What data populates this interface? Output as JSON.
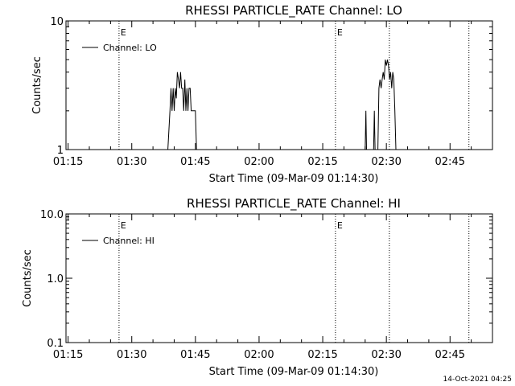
{
  "chart_data": [
    {
      "type": "line",
      "title": "RHESSI PARTICLE_RATE Channel: LO",
      "xlabel": "Start Time (09-Mar-09 01:14:30)",
      "ylabel": "Counts/sec",
      "y_scale": "log",
      "ylim": [
        1,
        10
      ],
      "xlim": [
        "01:14:30",
        "02:55:00"
      ],
      "x_ticks": [
        "01:15",
        "01:30",
        "01:45",
        "02:00",
        "02:15",
        "02:30",
        "02:45"
      ],
      "y_ticks": [
        "1",
        "10"
      ],
      "grid": false,
      "legend": {
        "entries": [
          "Channel: LO"
        ],
        "position": "top-left"
      },
      "markers": [
        {
          "time": "01:27:00",
          "label": "E"
        },
        {
          "time": "02:18:00",
          "label": "E"
        },
        {
          "time": "02:30:42",
          "label": ""
        },
        {
          "time": "02:49:27",
          "label": ""
        }
      ],
      "series": [
        {
          "name": "Channel: LO",
          "segments": [
            [
              [
                "01:38:30",
                1.0
              ],
              [
                "01:39:00",
                2.0
              ],
              [
                "01:39:15",
                3.0
              ],
              [
                "01:39:30",
                2.0
              ],
              [
                "01:39:45",
                3.0
              ],
              [
                "01:40:00",
                2.0
              ],
              [
                "01:40:15",
                3.0
              ],
              [
                "01:40:30",
                2.5
              ],
              [
                "01:40:45",
                4.0
              ],
              [
                "01:41:00",
                3.5
              ],
              [
                "01:41:15",
                3.0
              ],
              [
                "01:41:30",
                4.0
              ],
              [
                "01:41:45",
                3.0
              ],
              [
                "01:42:00",
                3.0
              ],
              [
                "01:42:15",
                2.0
              ],
              [
                "01:42:30",
                3.5
              ],
              [
                "01:42:45",
                2.0
              ],
              [
                "01:43:00",
                3.0
              ],
              [
                "01:43:15",
                2.0
              ],
              [
                "01:43:30",
                3.0
              ],
              [
                "01:43:45",
                3.0
              ],
              [
                "01:44:00",
                2.0
              ],
              [
                "01:44:30",
                2.0
              ],
              [
                "01:45:00",
                2.0
              ],
              [
                "01:45:15",
                1.0
              ]
            ],
            [
              [
                "02:25:00",
                1.0
              ],
              [
                "02:25:10",
                2.0
              ],
              [
                "02:25:20",
                1.0
              ],
              [
                "02:27:00",
                1.0
              ],
              [
                "02:27:10",
                2.0
              ],
              [
                "02:27:20",
                1.0
              ],
              [
                "02:28:00",
                1.0
              ],
              [
                "02:28:15",
                3.0
              ],
              [
                "02:28:30",
                3.5
              ],
              [
                "02:28:45",
                3.0
              ],
              [
                "02:29:00",
                3.5
              ],
              [
                "02:29:15",
                4.0
              ],
              [
                "02:29:30",
                3.5
              ],
              [
                "02:29:45",
                5.0
              ],
              [
                "02:30:00",
                4.5
              ],
              [
                "02:30:15",
                5.0
              ],
              [
                "02:30:30",
                4.5
              ],
              [
                "02:30:45",
                3.5
              ],
              [
                "02:31:00",
                4.0
              ],
              [
                "02:31:15",
                3.0
              ],
              [
                "02:31:30",
                4.0
              ],
              [
                "02:31:45",
                3.5
              ],
              [
                "02:32:00",
                2.0
              ],
              [
                "02:32:15",
                1.0
              ]
            ]
          ]
        }
      ]
    },
    {
      "type": "line",
      "title": "RHESSI PARTICLE_RATE Channel: HI",
      "xlabel": "Start Time (09-Mar-09 01:14:30)",
      "ylabel": "Counts/sec",
      "y_scale": "log",
      "ylim": [
        0.1,
        10
      ],
      "xlim": [
        "01:14:30",
        "02:55:00"
      ],
      "x_ticks": [
        "01:15",
        "01:30",
        "01:45",
        "02:00",
        "02:15",
        "02:30",
        "02:45"
      ],
      "y_ticks": [
        "0.1",
        "1.0",
        "10.0"
      ],
      "grid": false,
      "legend": {
        "entries": [
          "Channel: HI"
        ],
        "position": "top-left"
      },
      "markers": [
        {
          "time": "01:27:00",
          "label": "E"
        },
        {
          "time": "02:18:00",
          "label": "E"
        },
        {
          "time": "02:30:42",
          "label": ""
        },
        {
          "time": "02:49:27",
          "label": ""
        }
      ],
      "series": [
        {
          "name": "Channel: HI",
          "segments": []
        }
      ]
    }
  ],
  "footer": "14-Oct-2021 04:25",
  "colors": {
    "background": "#ffffff",
    "foreground": "#000000"
  }
}
